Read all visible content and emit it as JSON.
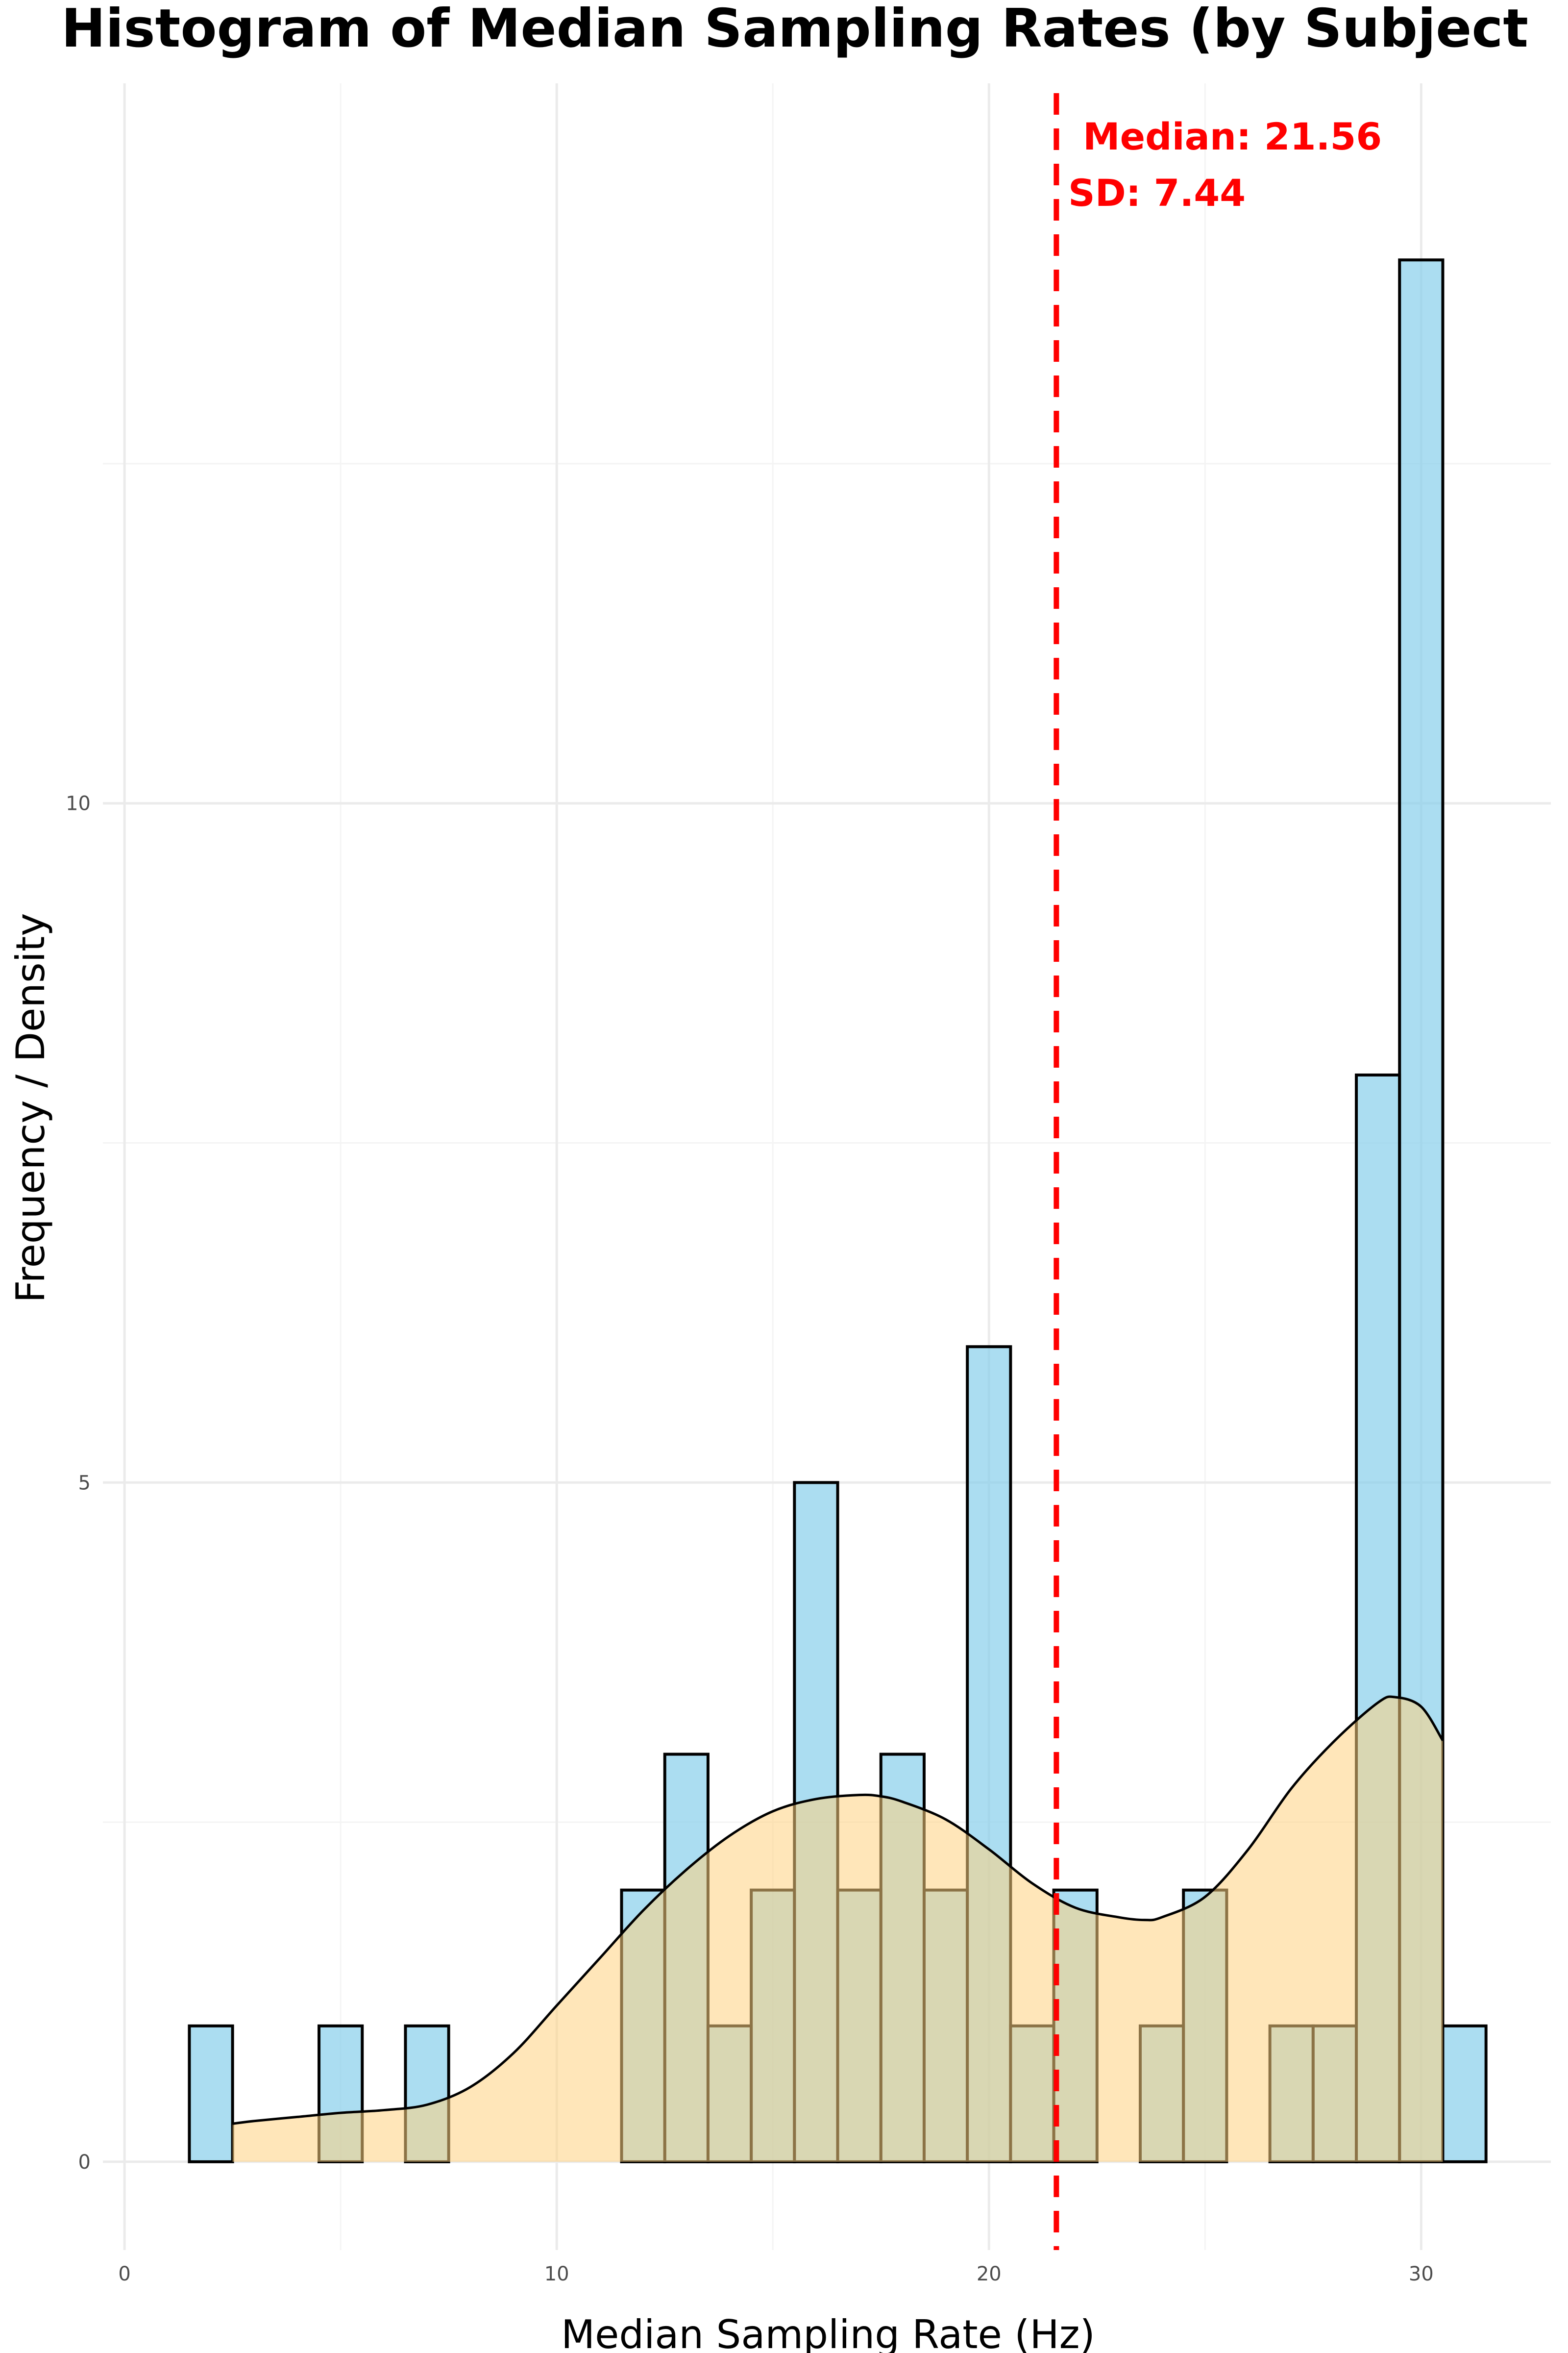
{
  "chart_data": {
    "type": "bar",
    "title": "Histogram of Median Sampling Rates (by Subject",
    "xlabel": "Median Sampling Rate (Hz)",
    "ylabel": "Frequency / Density",
    "xlim": [
      -0.5,
      33
    ],
    "ylim": [
      -0.65,
      15.3
    ],
    "xticks": [
      0,
      10,
      20,
      30
    ],
    "yticks": [
      0,
      5,
      10
    ],
    "grid": true,
    "bin_width": 1,
    "bins": [
      {
        "x": 2,
        "count": 1
      },
      {
        "x": 5,
        "count": 1
      },
      {
        "x": 7,
        "count": 1
      },
      {
        "x": 12,
        "count": 2
      },
      {
        "x": 13,
        "count": 3
      },
      {
        "x": 14,
        "count": 1
      },
      {
        "x": 15,
        "count": 2
      },
      {
        "x": 16,
        "count": 5
      },
      {
        "x": 17,
        "count": 2
      },
      {
        "x": 18,
        "count": 3
      },
      {
        "x": 19,
        "count": 2
      },
      {
        "x": 20,
        "count": 6
      },
      {
        "x": 21,
        "count": 1
      },
      {
        "x": 22,
        "count": 2
      },
      {
        "x": 24,
        "count": 1
      },
      {
        "x": 25,
        "count": 2
      },
      {
        "x": 27,
        "count": 1
      },
      {
        "x": 28,
        "count": 1
      },
      {
        "x": 29,
        "count": 8
      },
      {
        "x": 30,
        "count": 14
      },
      {
        "x": 31,
        "count": 1
      }
    ],
    "density_curve": {
      "x": [
        2.5,
        3,
        4,
        5,
        6,
        7,
        8,
        9,
        10,
        11,
        12,
        13,
        14,
        15,
        16,
        17,
        17.5,
        18,
        19,
        20,
        21,
        22,
        23,
        23.6,
        24,
        25,
        26,
        27,
        28,
        29,
        29.4,
        30,
        30.5
      ],
      "y": [
        0.28,
        0.3,
        0.33,
        0.36,
        0.38,
        0.42,
        0.55,
        0.8,
        1.15,
        1.5,
        1.85,
        2.15,
        2.4,
        2.58,
        2.67,
        2.7,
        2.69,
        2.65,
        2.52,
        2.3,
        2.05,
        1.87,
        1.8,
        1.78,
        1.8,
        1.95,
        2.3,
        2.75,
        3.1,
        3.38,
        3.42,
        3.35,
        3.1
      ]
    },
    "median_line": {
      "x": 21.56,
      "color": "#ff0000",
      "label": "Median: 21.56",
      "sd_label": "SD: 7.44"
    },
    "colors": {
      "bars": "#87ceeb",
      "density": "#ffd27f",
      "median": "#ff0000"
    }
  }
}
